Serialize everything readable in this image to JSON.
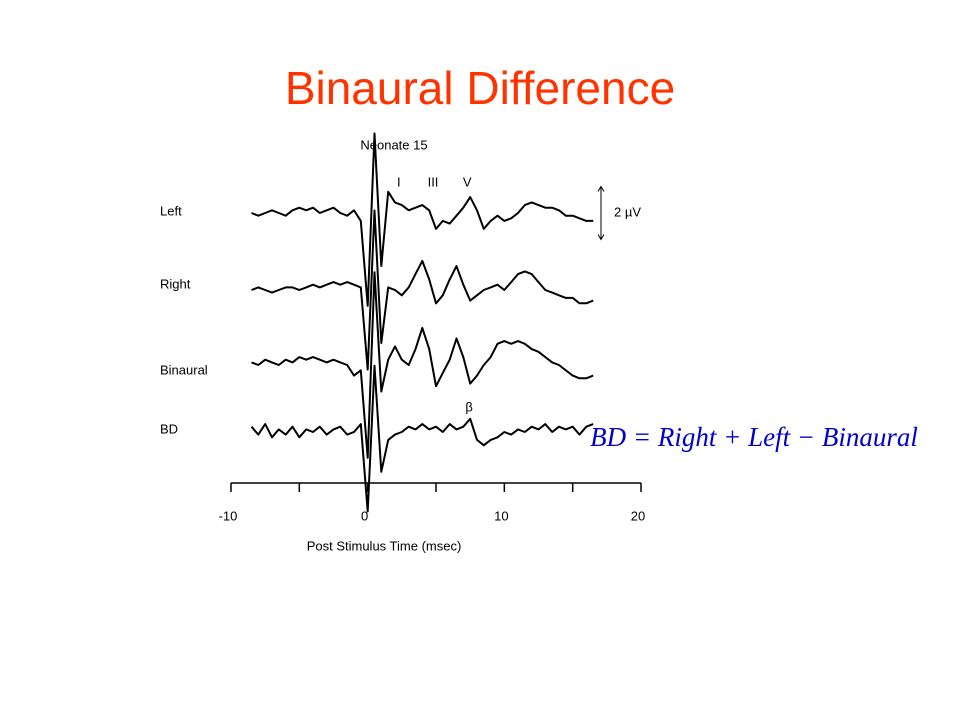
{
  "header": {
    "title": "Binaural Difference"
  },
  "chart_data": {
    "type": "line",
    "title": "Neonate 15",
    "x_label": "Post Stimulus Time (msec)",
    "x": [
      -8.5,
      -8,
      -7.5,
      -7,
      -6.5,
      -6,
      -5.5,
      -5,
      -4.5,
      -4,
      -3.5,
      -3,
      -2.5,
      -2,
      -1.5,
      -1,
      -0.5,
      0,
      0.5,
      1,
      1.5,
      2,
      2.5,
      3,
      3.5,
      4,
      4.5,
      5,
      5.5,
      6,
      6.5,
      7,
      7.5,
      8,
      8.5,
      9,
      9.5,
      10,
      10.5,
      11,
      11.5,
      12,
      12.5,
      13,
      13.5,
      14,
      14.5,
      15,
      15.5,
      16,
      16.5
    ],
    "series": [
      {
        "name": "Left",
        "color": "#000000",
        "values": [
          0,
          -0.1,
          0,
          0.1,
          0,
          -0.1,
          0.1,
          0.2,
          0.1,
          0.2,
          0,
          0.1,
          0.2,
          0,
          -0.1,
          0.1,
          -0.3,
          -3.5,
          3,
          -2,
          0.8,
          0.4,
          0.3,
          0.1,
          0.2,
          0.3,
          0.1,
          -0.6,
          -0.3,
          -0.4,
          -0.1,
          0.2,
          0.6,
          0.1,
          -0.6,
          -0.3,
          -0.1,
          -0.3,
          -0.2,
          0,
          0.3,
          0.4,
          0.3,
          0.2,
          0.2,
          0.1,
          -0.1,
          -0.1,
          -0.2,
          -0.3,
          -0.3
        ]
      },
      {
        "name": "Right",
        "color": "#000000",
        "values": [
          0,
          0.1,
          0,
          -0.1,
          0,
          0.1,
          0.1,
          0,
          0.1,
          0.2,
          0.1,
          0.2,
          0.3,
          0.2,
          0.3,
          0.2,
          0.1,
          -3,
          3,
          -2,
          0.1,
          0,
          -0.2,
          0.1,
          0.6,
          1.1,
          0.4,
          -0.5,
          -0.2,
          0.4,
          0.9,
          0.2,
          -0.4,
          -0.2,
          0,
          0.1,
          0.2,
          0,
          0.3,
          0.6,
          0.7,
          0.6,
          0.3,
          0,
          -0.1,
          -0.2,
          -0.3,
          -0.3,
          -0.5,
          -0.5,
          -0.4
        ]
      },
      {
        "name": "Binaural",
        "color": "#000000",
        "values": [
          0.1,
          0,
          0.2,
          0.1,
          0,
          0.2,
          0.1,
          0.3,
          0.2,
          0.3,
          0.2,
          0.1,
          0.2,
          0.1,
          0,
          -0.4,
          -0.2,
          -3.5,
          3.5,
          -1,
          0.2,
          0.7,
          0.2,
          0,
          0.6,
          1.4,
          0.6,
          -0.8,
          -0.3,
          0.2,
          1.0,
          0.3,
          -0.7,
          -0.4,
          0,
          0.3,
          0.8,
          0.9,
          0.8,
          0.9,
          0.8,
          0.6,
          0.5,
          0.3,
          0.1,
          0,
          -0.2,
          -0.4,
          -0.5,
          -0.5,
          -0.4
        ]
      },
      {
        "name": "BD",
        "color": "#000000",
        "values": [
          0.2,
          -0.1,
          0.3,
          -0.2,
          0.1,
          -0.1,
          0.2,
          -0.2,
          0.1,
          0,
          0.2,
          -0.1,
          0.1,
          0.2,
          -0.1,
          0,
          0.3,
          -3,
          2.5,
          -1.5,
          -0.3,
          -0.1,
          0,
          0.2,
          0.1,
          0.3,
          0.1,
          0.2,
          0,
          0.3,
          0.1,
          0.2,
          0.5,
          -0.3,
          -0.5,
          -0.3,
          -0.2,
          0,
          -0.1,
          0.1,
          0,
          0.2,
          0.1,
          0.3,
          0,
          0.2,
          0.1,
          0.2,
          -0.1,
          0.2,
          0.3
        ]
      }
    ],
    "xlim": [
      -10,
      20
    ],
    "xticks": [
      -10,
      0,
      10,
      20
    ],
    "x_minor_ticks": [
      -5,
      5,
      15
    ],
    "peak_labels": [
      {
        "text": "I",
        "x": 2.5
      },
      {
        "text": "III",
        "x": 5
      },
      {
        "text": "V",
        "x": 7.5
      }
    ],
    "bd_peak_label": {
      "text": "β",
      "x": 7.5
    },
    "scale_bar": {
      "value": 2,
      "label": "2 µV"
    },
    "equation": "BD = Right + Left − Binaural"
  }
}
